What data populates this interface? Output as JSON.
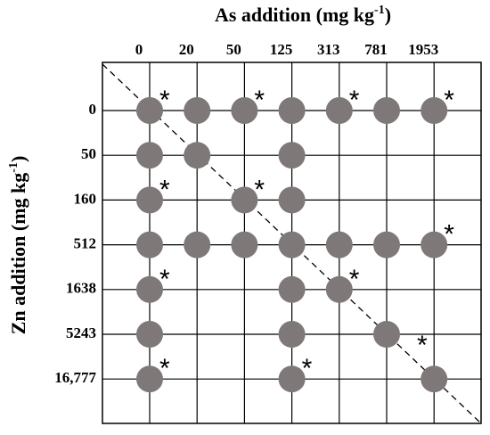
{
  "x_axis": {
    "title": {
      "text": "As addition (mg kg",
      "superscript": "-1",
      "suffix": ")"
    },
    "labels": [
      "0",
      "20",
      "50",
      "125",
      "313",
      "781",
      "1953"
    ]
  },
  "y_axis": {
    "title": {
      "text": "Zn addition (mg kg",
      "superscript": "-1",
      "suffix": ")"
    },
    "labels": [
      "0",
      "50",
      "160",
      "512",
      "1638",
      "5243",
      "16,777"
    ]
  },
  "significance_mark": "*"
}
